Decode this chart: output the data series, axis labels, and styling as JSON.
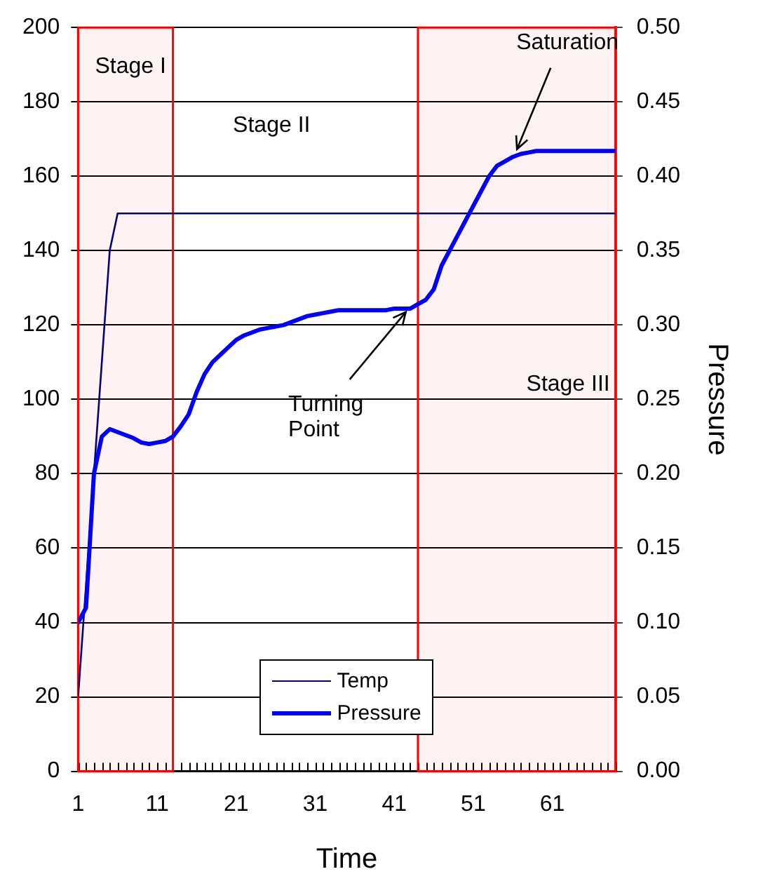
{
  "chart_data": {
    "type": "line",
    "xlabel": "Time",
    "y2label": "Pressure",
    "x": [
      1,
      2,
      3,
      4,
      5,
      6,
      7,
      8,
      9,
      10,
      11,
      12,
      13,
      14,
      15,
      16,
      17,
      18,
      19,
      20,
      21,
      22,
      23,
      24,
      25,
      26,
      27,
      28,
      29,
      30,
      31,
      32,
      33,
      34,
      35,
      36,
      37,
      38,
      39,
      40,
      41,
      42,
      43,
      44,
      45,
      46,
      47,
      48,
      49,
      50,
      51,
      52,
      53,
      54,
      55,
      56,
      57,
      58,
      59,
      60,
      61,
      62,
      63,
      64,
      65,
      66,
      67,
      68,
      69
    ],
    "series": [
      {
        "name": "Temp",
        "color": "#000080",
        "values": [
          20,
          50,
          80,
          110,
          140,
          150,
          150,
          150,
          150,
          150,
          150,
          150,
          150,
          150,
          150,
          150,
          150,
          150,
          150,
          150,
          150,
          150,
          150,
          150,
          150,
          150,
          150,
          150,
          150,
          150,
          150,
          150,
          150,
          150,
          150,
          150,
          150,
          150,
          150,
          150,
          150,
          150,
          150,
          150,
          150,
          150,
          150,
          150,
          150,
          150,
          150,
          150,
          150,
          150,
          150,
          150,
          150,
          150,
          150,
          150,
          150,
          150,
          150,
          150,
          150,
          150,
          150,
          150,
          150
        ]
      },
      {
        "name": "Pressure",
        "color": "#0000ff",
        "axis": "y2",
        "values": [
          0.1,
          0.11,
          0.2,
          0.225,
          0.23,
          0.228,
          0.226,
          0.224,
          0.221,
          0.22,
          0.221,
          0.222,
          0.225,
          0.232,
          0.24,
          0.255,
          0.267,
          0.275,
          0.28,
          0.285,
          0.29,
          0.293,
          0.295,
          0.297,
          0.298,
          0.299,
          0.3,
          0.302,
          0.304,
          0.306,
          0.307,
          0.308,
          0.309,
          0.31,
          0.31,
          0.31,
          0.31,
          0.31,
          0.31,
          0.31,
          0.311,
          0.311,
          0.311,
          0.314,
          0.317,
          0.324,
          0.34,
          0.35,
          0.36,
          0.37,
          0.38,
          0.39,
          0.4,
          0.407,
          0.41,
          0.413,
          0.415,
          0.416,
          0.417,
          0.417,
          0.417,
          0.417,
          0.417,
          0.417,
          0.417,
          0.417,
          0.417,
          0.417,
          0.417
        ]
      }
    ],
    "xlim": [
      1,
      69
    ],
    "xticks": [
      1,
      {
        "value": 2,
        "label": null
      },
      {
        "value": 3,
        "label": null
      },
      {
        "value": 4,
        "label": null
      },
      {
        "value": 5,
        "label": null
      },
      {
        "value": 6,
        "label": null
      },
      {
        "value": 7,
        "label": null
      },
      {
        "value": 8,
        "label": null
      },
      {
        "value": 9,
        "label": null
      },
      {
        "value": 10,
        "label": null
      },
      11,
      {
        "value": 12,
        "label": null
      },
      {
        "value": 13,
        "label": null
      },
      {
        "value": 14,
        "label": null
      },
      {
        "value": 15,
        "label": null
      },
      {
        "value": 16,
        "label": null
      },
      {
        "value": 17,
        "label": null
      },
      {
        "value": 18,
        "label": null
      },
      {
        "value": 19,
        "label": null
      },
      {
        "value": 20,
        "label": null
      },
      21,
      {
        "value": 22,
        "label": null
      },
      {
        "value": 23,
        "label": null
      },
      {
        "value": 24,
        "label": null
      },
      {
        "value": 25,
        "label": null
      },
      {
        "value": 26,
        "label": null
      },
      {
        "value": 27,
        "label": null
      },
      {
        "value": 28,
        "label": null
      },
      {
        "value": 29,
        "label": null
      },
      {
        "value": 30,
        "label": null
      },
      31,
      {
        "value": 32,
        "label": null
      },
      {
        "value": 33,
        "label": null
      },
      {
        "value": 34,
        "label": null
      },
      {
        "value": 35,
        "label": null
      },
      {
        "value": 36,
        "label": null
      },
      {
        "value": 37,
        "label": null
      },
      {
        "value": 38,
        "label": null
      },
      {
        "value": 39,
        "label": null
      },
      {
        "value": 40,
        "label": null
      },
      41,
      {
        "value": 42,
        "label": null
      },
      {
        "value": 43,
        "label": null
      },
      {
        "value": 44,
        "label": null
      },
      {
        "value": 45,
        "label": null
      },
      {
        "value": 46,
        "label": null
      },
      {
        "value": 47,
        "label": null
      },
      {
        "value": 48,
        "label": null
      },
      {
        "value": 49,
        "label": null
      },
      {
        "value": 50,
        "label": null
      },
      51,
      {
        "value": 52,
        "label": null
      },
      {
        "value": 53,
        "label": null
      },
      {
        "value": 54,
        "label": null
      },
      {
        "value": 55,
        "label": null
      },
      {
        "value": 56,
        "label": null
      },
      {
        "value": 57,
        "label": null
      },
      {
        "value": 58,
        "label": null
      },
      {
        "value": 59,
        "label": null
      },
      {
        "value": 60,
        "label": null
      },
      61,
      {
        "value": 62,
        "label": null
      },
      {
        "value": 63,
        "label": null
      },
      {
        "value": 64,
        "label": null
      },
      {
        "value": 65,
        "label": null
      },
      {
        "value": 66,
        "label": null
      },
      {
        "value": 67,
        "label": null
      },
      {
        "value": 68,
        "label": null
      },
      {
        "value": 69,
        "label": null
      }
    ],
    "ylim": [
      0,
      200
    ],
    "yticks": [
      0,
      20,
      40,
      60,
      80,
      100,
      120,
      140,
      160,
      180,
      200
    ],
    "y2lim": [
      0,
      0.5
    ],
    "y2ticks": [
      {
        "value": 0,
        "label": "0.00"
      },
      {
        "value": 0.05,
        "label": "0.05"
      },
      {
        "value": 0.1,
        "label": "0.10"
      },
      {
        "value": 0.15,
        "label": "0.15"
      },
      {
        "value": 0.2,
        "label": "0.20"
      },
      {
        "value": 0.25,
        "label": "0.25"
      },
      {
        "value": 0.3,
        "label": "0.30"
      },
      {
        "value": 0.35,
        "label": "0.35"
      },
      {
        "value": 0.4,
        "label": "0.40"
      },
      {
        "value": 0.45,
        "label": "0.45"
      },
      {
        "value": 0.5,
        "label": "0.50"
      }
    ],
    "bands": [
      {
        "axis": "x",
        "from": 1,
        "to": 13,
        "label": "Stage I",
        "color": "#ff0000"
      },
      {
        "axis": "x",
        "from": 44,
        "to": 69,
        "label": "Stage III",
        "color": "#ff0000"
      }
    ],
    "annotations": [
      "Stage II",
      {
        "text": "Turning Point",
        "x": 43,
        "y": 125
      },
      {
        "text": "Saturation",
        "x": 56,
        "y": 165
      }
    ],
    "grid": "y",
    "legend": "bottom",
    "marker": "none",
    "line_style": "solid"
  }
}
